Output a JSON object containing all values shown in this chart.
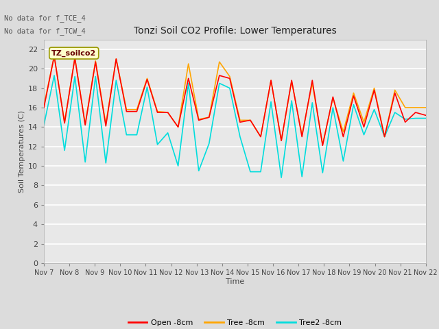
{
  "title": "Tonzi Soil CO2 Profile: Lower Temperatures",
  "ylabel": "Soil Temperatures (C)",
  "xlabel": "Time",
  "no_data_text_1": "No data for f_TCE_4",
  "no_data_text_2": "No data for f_TCW_4",
  "legend_label_box": "TZ_soilco2",
  "ylim": [
    0,
    23
  ],
  "yticks": [
    0,
    2,
    4,
    6,
    8,
    10,
    12,
    14,
    16,
    18,
    20,
    22
  ],
  "xtick_labels": [
    "Nov 7",
    "Nov 8",
    "Nov 9",
    "Nov 10",
    "Nov 11",
    "Nov 12",
    "Nov 13",
    "Nov 14",
    "Nov 15",
    "Nov 16",
    "Nov 17",
    "Nov 18",
    "Nov 19",
    "Nov 20",
    "Nov 21",
    "Nov 22"
  ],
  "line_colors": {
    "open": "#FF0000",
    "tree": "#FFA500",
    "tree2": "#00DDDD"
  },
  "legend_entries": [
    "Open -8cm",
    "Tree -8cm",
    "Tree2 -8cm"
  ],
  "bg_color": "#DCDCDC",
  "plot_bg_color": "#E8E8E8",
  "open_data": [
    16.0,
    21.3,
    14.4,
    21.1,
    14.2,
    20.7,
    14.1,
    21.0,
    15.6,
    15.6,
    18.9,
    15.5,
    15.5,
    14.0,
    19.0,
    14.7,
    15.0,
    19.3,
    19.0,
    14.5,
    14.7,
    13.0,
    18.8,
    12.6,
    18.8,
    13.0,
    18.8,
    12.1,
    17.1,
    13.0,
    17.2,
    14.0,
    17.8,
    13.0,
    17.5,
    14.5,
    15.5,
    15.2
  ],
  "tree_data": [
    16.2,
    21.3,
    14.5,
    21.1,
    14.3,
    20.8,
    14.3,
    21.0,
    15.8,
    15.8,
    19.0,
    15.6,
    15.5,
    14.0,
    20.5,
    14.8,
    15.0,
    20.7,
    19.2,
    14.7,
    14.7,
    13.0,
    18.8,
    12.6,
    18.7,
    13.2,
    18.5,
    12.2,
    17.0,
    13.5,
    17.5,
    14.5,
    18.0,
    13.0,
    17.8,
    16.0,
    16.0,
    16.0
  ],
  "tree2_data": [
    14.2,
    19.3,
    11.6,
    19.2,
    10.4,
    19.2,
    10.3,
    18.8,
    13.2,
    13.2,
    18.1,
    12.2,
    13.4,
    10.0,
    18.5,
    9.5,
    12.3,
    18.5,
    18.0,
    13.0,
    9.4,
    9.4,
    16.6,
    8.8,
    16.7,
    8.9,
    16.5,
    9.3,
    16.0,
    10.5,
    16.3,
    13.2,
    15.8,
    13.0,
    15.5,
    14.8,
    14.9,
    14.9
  ]
}
